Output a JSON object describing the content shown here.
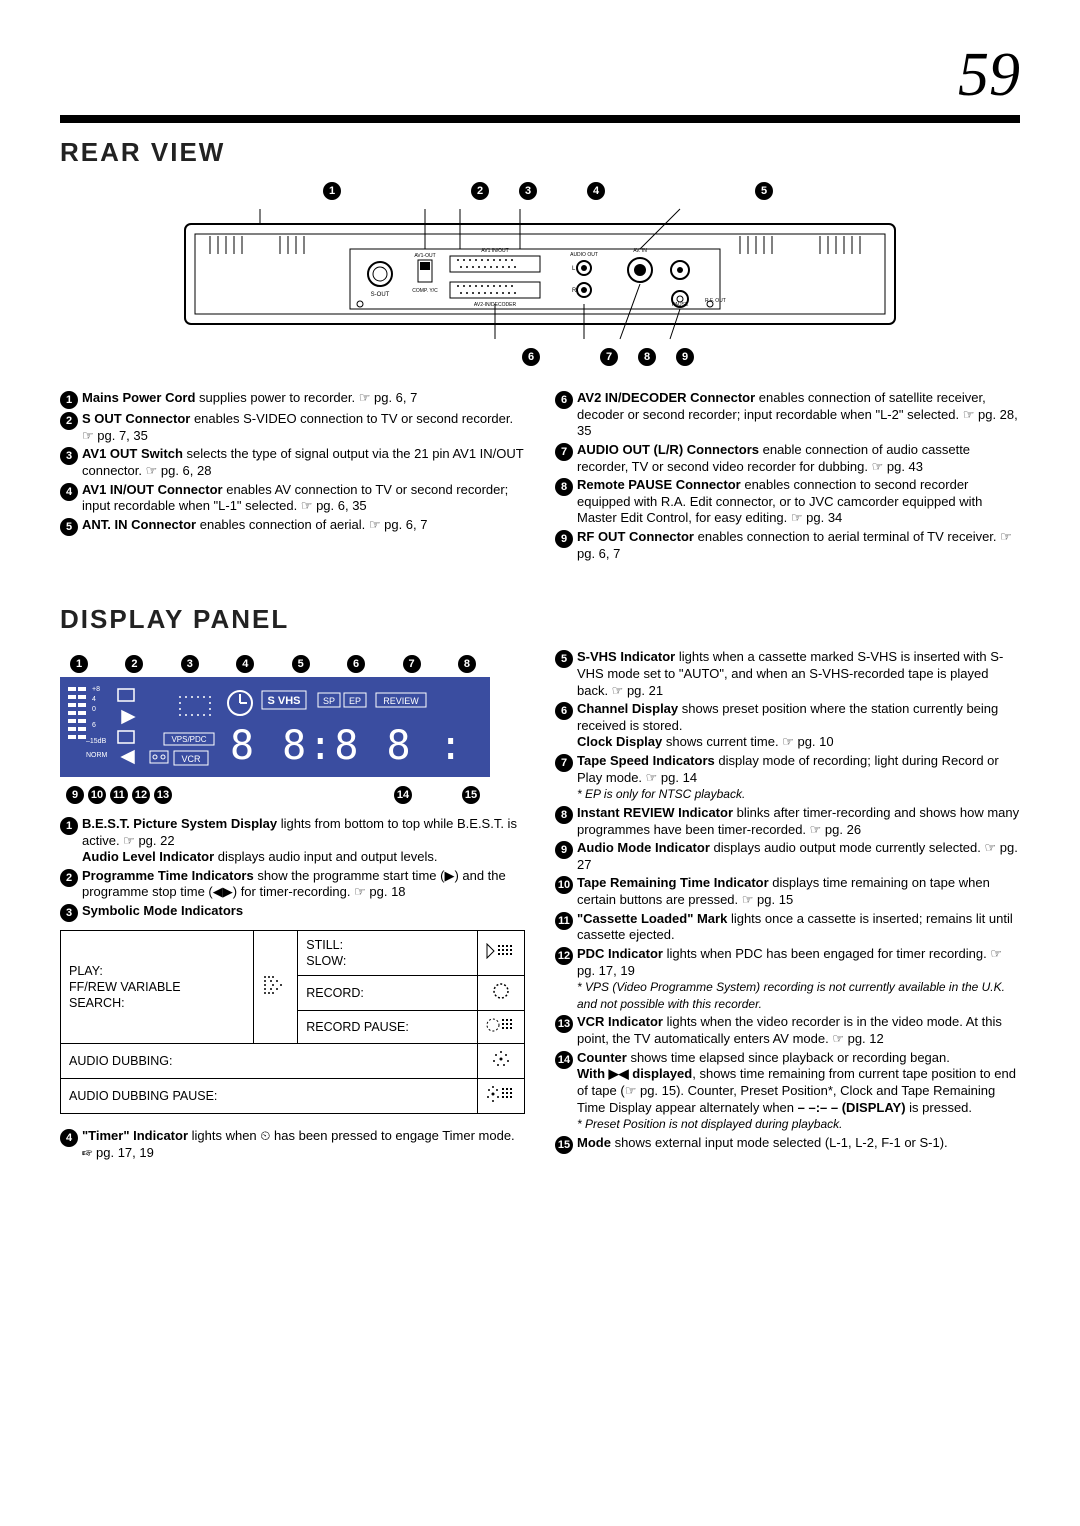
{
  "page_number": "59",
  "rear": {
    "title": "REAR VIEW",
    "diagram_labels": {
      "s_out": "S-OUT",
      "av1_out": "AV1-OUT",
      "comp_yc": "COMP. Y/C",
      "av1_inout": "AV1 IN/OUT",
      "av2_in_dec": "AV2-IN/DECODER",
      "audio_out": "AUDIO OUT",
      "l": "L",
      "r": "R",
      "av_in": "AV. IN",
      "pause": "PAUSE",
      "rf_out": "R.F. OUT"
    },
    "left": [
      {
        "n": "1",
        "body": "<span class='b'>Mains Power Cord</span> supplies power to recorder. ☞ pg. 6, 7"
      },
      {
        "n": "2",
        "body": "<span class='b'>S OUT Connector</span> enables S-VIDEO connection to TV or second recorder. ☞ pg. 7, 35"
      },
      {
        "n": "3",
        "body": "<span class='b'>AV1 OUT Switch</span> selects the type of signal output via the 21 pin AV1 IN/OUT connector. ☞ pg. 6, 28"
      },
      {
        "n": "4",
        "body": "<span class='b'>AV1 IN/OUT Connector</span> enables AV connection to TV or second recorder; input recordable when \"L-1\" selected. ☞ pg. 6, 35"
      },
      {
        "n": "5",
        "body": "<span class='b'>ANT. IN Connector</span> enables connection of aerial. ☞ pg. 6, 7"
      }
    ],
    "right": [
      {
        "n": "6",
        "body": "<span class='b'>AV2 IN/DECODER Connector</span> enables connection of satellite receiver, decoder or second recorder; input recordable when \"L-2\" selected. ☞ pg. 28, 35"
      },
      {
        "n": "7",
        "body": "<span class='b'>AUDIO OUT (L/R) Connectors</span> enable connection of audio cassette recorder, TV or second video recorder for dubbing. ☞ pg. 43"
      },
      {
        "n": "8",
        "body": "<span class='b'>Remote PAUSE Connector</span> enables connection to second recorder equipped with R.A. Edit connector, or to JVC camcorder equipped with Master Edit Control, for easy editing. ☞ pg. 34"
      },
      {
        "n": "9",
        "body": "<span class='b'>RF OUT Connector</span> enables connection to aerial terminal of TV receiver. ☞ pg. 6, 7"
      }
    ]
  },
  "panel": {
    "title": "DISPLAY PANEL",
    "lcd": {
      "levels": [
        "+8",
        "4",
        "0",
        "6",
        "–15dB",
        "NORM"
      ],
      "vps": "VPS/PDC",
      "vcr": "VCR",
      "svhs": "S VHS",
      "sp": "SP",
      "ep": "EP",
      "review": "REVIEW",
      "digits": "8 8:8 8  : 8 8"
    },
    "left": [
      {
        "n": "1",
        "body": "<span class='b'>B.E.S.T. Picture System Display</span> lights from bottom to top while B.E.S.T. is active. ☞ pg. 22<br><span class='b'>Audio Level Indicator</span> displays audio input and output levels."
      },
      {
        "n": "2",
        "body": "<span class='b'>Programme Time Indicators</span> show the programme start time (▶) and the programme stop time (◀▶) for timer-recording. ☞ pg. 18"
      },
      {
        "n": "3",
        "body": "<span class='b'>Symbolic Mode Indicators</span>"
      }
    ],
    "table": {
      "play": "PLAY:\nFF/REW VARIABLE\nSEARCH:",
      "still": "STILL:\nSLOW:",
      "record": "RECORD:",
      "record_pause": "RECORD PAUSE:",
      "audio_dub": "AUDIO DUBBING:",
      "audio_dub_pause": "AUDIO DUBBING PAUSE:"
    },
    "left2": [
      {
        "n": "4",
        "body": "<span class='b'>\"Timer\" Indicator</span> lights when ⏲ has been pressed to engage Timer mode. ☞ pg. 17, 19"
      }
    ],
    "right": [
      {
        "n": "5",
        "body": "<span class='b'>S-VHS Indicator</span> lights when a cassette marked S-VHS is inserted with S-VHS mode set to \"AUTO\", and when an S-VHS-recorded tape is played back. ☞ pg. 21"
      },
      {
        "n": "6",
        "body": "<span class='b'>Channel Display</span> shows preset position where the station currently being received is stored.<br><span class='b'>Clock Display</span> shows current time. ☞ pg. 10"
      },
      {
        "n": "7",
        "body": "<span class='b'>Tape Speed Indicators</span> display mode of recording; light during Record or Play mode. ☞ pg. 14<br><span class='note-italic'>* EP is only for NTSC playback.</span>"
      },
      {
        "n": "8",
        "body": "<span class='b'>Instant REVIEW Indicator</span> blinks after timer-recording and shows how many programmes have been timer-recorded. ☞ pg. 26"
      },
      {
        "n": "9",
        "body": "<span class='b'>Audio Mode Indicator</span> displays audio output mode currently selected. ☞ pg. 27"
      },
      {
        "n": "10",
        "body": "<span class='b'>Tape Remaining Time Indicator</span> displays time remaining on tape when certain buttons are pressed. ☞ pg. 15"
      },
      {
        "n": "11",
        "body": "<span class='b'>\"Cassette Loaded\" Mark</span> lights once a cassette is inserted; remains lit until cassette ejected."
      },
      {
        "n": "12",
        "body": "<span class='b'>PDC Indicator</span> lights when PDC has been engaged for timer recording. ☞ pg. 17, 19<br><span class='note-italic'>* VPS (Video Programme System) recording is not currently available in the U.K. and not possible with this recorder.</span>"
      },
      {
        "n": "13",
        "body": "<span class='b'>VCR Indicator</span> lights when the video recorder is in the video mode. At this point, the TV automatically enters AV mode. ☞ pg. 12"
      },
      {
        "n": "14",
        "body": "<span class='b'>Counter</span> shows time elapsed since playback or recording began.<br><span class='b'>With ▶◀ displayed</span>, shows time remaining from current tape position to end of tape (☞ pg. 15). Counter, Preset Position*, Clock and Tape Remaining Time Display appear alternately when <span class='b'>– –:– – (DISPLAY)</span> is pressed.<br><span class='note-italic'>* Preset Position is not displayed during playback.</span>"
      },
      {
        "n": "15",
        "body": "<span class='b'>Mode</span> shows external input mode selected (L-1, L-2, F-1 or S-1)."
      }
    ]
  },
  "colors": {
    "ink": "#000000",
    "bg": "#ffffff",
    "panel_bg": "#2a3d8f"
  }
}
